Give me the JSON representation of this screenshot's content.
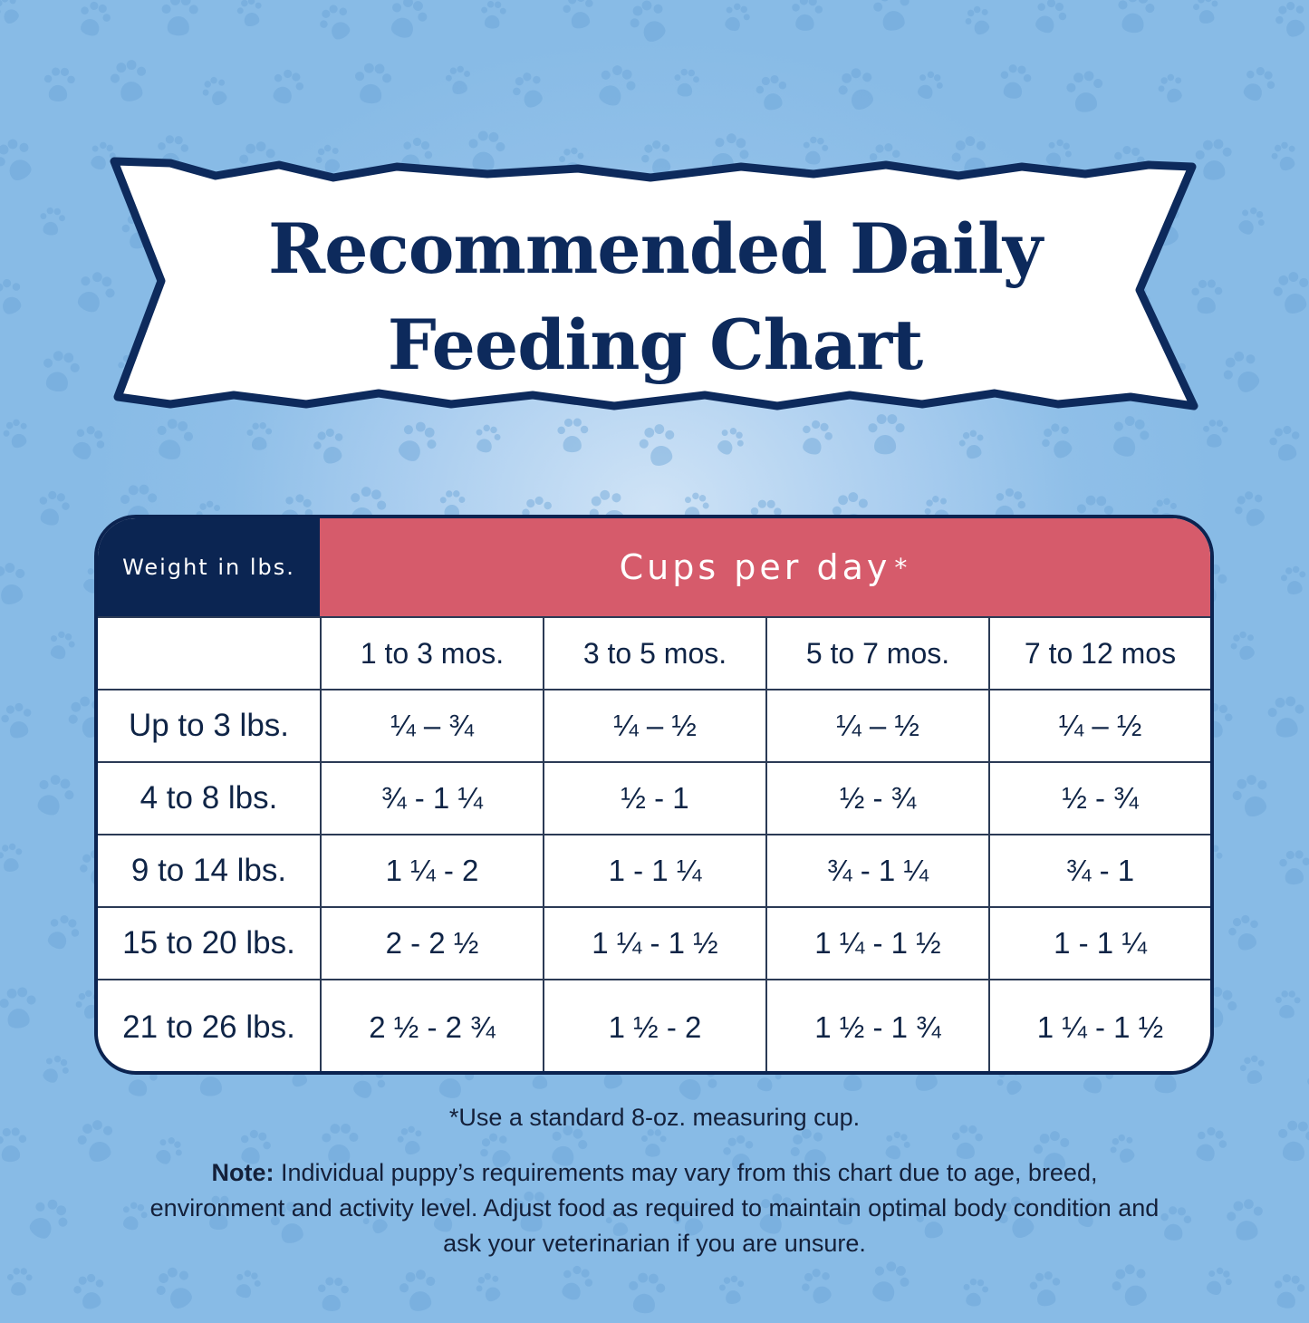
{
  "banner": {
    "title_line1": "Recommended Daily",
    "title_line2": "Feeding Chart"
  },
  "table": {
    "weight_header": "Weight in lbs.",
    "cups_header": "Cups per day",
    "cups_header_mark": "*",
    "age_columns": [
      "1 to 3 mos.",
      "3 to 5 mos.",
      "5 to 7 mos.",
      "7 to 12 mos"
    ],
    "rows": [
      {
        "weight": "Up to 3 lbs.",
        "values": [
          "¼ – ¾",
          "¼ – ½",
          "¼ – ½",
          "¼ – ½"
        ]
      },
      {
        "weight": "4 to 8 lbs.",
        "values": [
          "¾ - 1 ¼",
          "½ - 1",
          "½ - ¾",
          "½ - ¾"
        ]
      },
      {
        "weight": "9 to 14 lbs.",
        "values": [
          "1 ¼ - 2",
          "1 - 1 ¼",
          "¾ - 1 ¼",
          "¾ - 1"
        ]
      },
      {
        "weight": "15 to 20 lbs.",
        "values": [
          "2 - 2 ½",
          "1 ¼ - 1 ½",
          "1 ¼ - 1 ½",
          "1 - 1 ¼"
        ]
      },
      {
        "weight": "21 to 26 lbs.",
        "values": [
          "2 ½ - 2 ¾",
          "1 ½ - 2",
          "1 ½ - 1 ¾",
          "1 ¼ - 1 ½"
        ]
      }
    ]
  },
  "footnote": "*Use a standard 8-oz. measuring cup.",
  "note": {
    "label": "Note:",
    "text": " Individual puppy’s requirements may vary from this chart due to age, breed, environment and activity level. Adjust food as required to maintain optimal body condition and ask  your veterinarian if you are unsure."
  },
  "colors": {
    "navy": "#0b2552",
    "header_red": "#d65b6b",
    "background_blue": "#8fbfe8",
    "text_dark": "#0f2446"
  },
  "chart_data": {
    "type": "table",
    "title": "Recommended Daily Feeding Chart",
    "row_header": "Weight in lbs.",
    "column_group_header": "Cups per day*",
    "columns": [
      "1 to 3 mos.",
      "3 to 5 mos.",
      "5 to 7 mos.",
      "7 to 12 mos"
    ],
    "rows": [
      "Up to 3 lbs.",
      "4 to 8 lbs.",
      "9 to 14 lbs.",
      "15 to 20 lbs.",
      "21 to 26 lbs."
    ],
    "values": [
      [
        "¼ – ¾",
        "¼ – ½",
        "¼ – ½",
        "¼ – ½"
      ],
      [
        "¾ - 1 ¼",
        "½ - 1",
        "½ - ¾",
        "½ - ¾"
      ],
      [
        "1 ¼ - 2",
        "1 - 1 ¼",
        "¾ - 1 ¼",
        "¾ - 1"
      ],
      [
        "2 - 2 ½",
        "1 ¼ - 1 ½",
        "1 ¼ - 1 ½",
        "1 - 1 ¼"
      ],
      [
        "2 ½ - 2 ¾",
        "1 ½ - 2",
        "1 ½ - 1 ¾",
        "1 ¼ - 1 ½"
      ]
    ],
    "values_numeric_cups": [
      [
        [
          0.25,
          0.75
        ],
        [
          0.25,
          0.5
        ],
        [
          0.25,
          0.5
        ],
        [
          0.25,
          0.5
        ]
      ],
      [
        [
          0.75,
          1.25
        ],
        [
          0.5,
          1.0
        ],
        [
          0.5,
          0.75
        ],
        [
          0.5,
          0.75
        ]
      ],
      [
        [
          1.25,
          2.0
        ],
        [
          1.0,
          1.25
        ],
        [
          0.75,
          1.25
        ],
        [
          0.75,
          1.0
        ]
      ],
      [
        [
          2.0,
          2.5
        ],
        [
          1.25,
          1.5
        ],
        [
          1.25,
          1.5
        ],
        [
          1.0,
          1.25
        ]
      ],
      [
        [
          2.5,
          2.75
        ],
        [
          1.5,
          2.0
        ],
        [
          1.5,
          1.75
        ],
        [
          1.25,
          1.5
        ]
      ]
    ],
    "annotations": [
      "*Use a standard 8-oz. measuring cup."
    ]
  }
}
